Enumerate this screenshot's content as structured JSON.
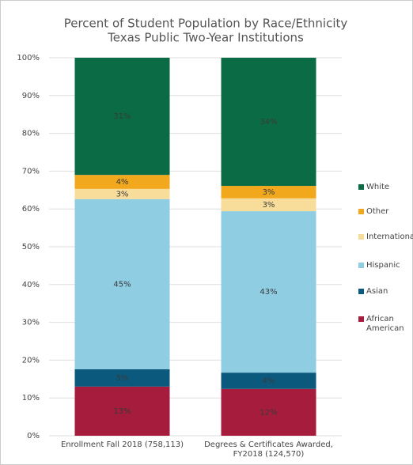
{
  "chart_data": {
    "type": "stacked_bar",
    "title": "Percent of Student Population by Race/Ethnicity",
    "subtitle": "Texas Public Two-Year Institutions",
    "categories": [
      "Enrollment Fall 2018 (758,113)",
      "Degrees & Certificates Awarded, FY2018 (124,570)"
    ],
    "series": [
      {
        "name": "African American",
        "color": "#a51c3d",
        "values": [
          13.0,
          12.4
        ],
        "value_labels": [
          "13%",
          "12%"
        ]
      },
      {
        "name": "Asian",
        "color": "#0b5a7e",
        "values": [
          4.6,
          4.3
        ],
        "value_labels": [
          "5%",
          "4%"
        ]
      },
      {
        "name": "Hispanic",
        "color": "#8fcde3",
        "values": [
          45.0,
          42.7
        ],
        "value_labels": [
          "45%",
          "43%"
        ]
      },
      {
        "name": "International",
        "color": "#f8dc9a",
        "values": [
          2.7,
          3.4
        ],
        "value_labels": [
          "3%",
          "3%"
        ]
      },
      {
        "name": "Other",
        "color": "#f2a81d",
        "values": [
          3.7,
          3.3
        ],
        "value_labels": [
          "4%",
          "3%"
        ]
      },
      {
        "name": "White",
        "color": "#0a6b45",
        "values": [
          31.0,
          33.9
        ],
        "value_labels": [
          "31%",
          "34%"
        ]
      }
    ],
    "ylim": [
      0,
      100
    ],
    "yticks": [
      {
        "value": 0,
        "label": "0%"
      },
      {
        "value": 10,
        "label": "10%"
      },
      {
        "value": 20,
        "label": "20%"
      },
      {
        "value": 30,
        "label": "30%"
      },
      {
        "value": 40,
        "label": "40%"
      },
      {
        "value": 50,
        "label": "50%"
      },
      {
        "value": 60,
        "label": "60%"
      },
      {
        "value": 70,
        "label": "70%"
      },
      {
        "value": 80,
        "label": "80%"
      },
      {
        "value": 90,
        "label": "90%"
      },
      {
        "value": 100,
        "label": "100%"
      }
    ],
    "grid": true,
    "legend": "right"
  }
}
